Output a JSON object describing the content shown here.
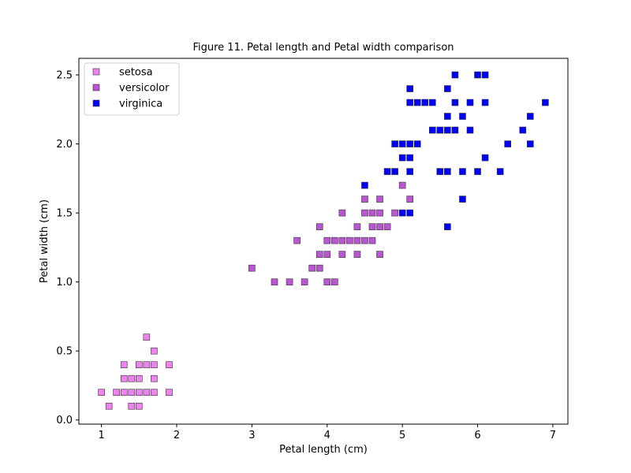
{
  "chart_data": {
    "type": "scatter",
    "title": "Figure 11. Petal length and Petal width comparison",
    "xlabel": "Petal length (cm)",
    "ylabel": "Petal width (cm)",
    "xlim": [
      0.7,
      7.2
    ],
    "ylim": [
      -0.03,
      2.62
    ],
    "xticks": [
      1,
      2,
      3,
      4,
      5,
      6,
      7
    ],
    "yticks": [
      0.0,
      0.5,
      1.0,
      1.5,
      2.0,
      2.5
    ],
    "xtick_labels": [
      "1",
      "2",
      "3",
      "4",
      "5",
      "6",
      "7"
    ],
    "ytick_labels": [
      "0.0",
      "0.5",
      "1.0",
      "1.5",
      "2.0",
      "2.5"
    ],
    "grid": false,
    "legend_position": "top-left",
    "marker": "square",
    "series": [
      {
        "name": "setosa",
        "color": "#ee82ee",
        "points": [
          [
            1.0,
            0.2
          ],
          [
            1.1,
            0.1
          ],
          [
            1.2,
            0.2
          ],
          [
            1.3,
            0.2
          ],
          [
            1.3,
            0.3
          ],
          [
            1.3,
            0.4
          ],
          [
            1.4,
            0.1
          ],
          [
            1.4,
            0.2
          ],
          [
            1.4,
            0.3
          ],
          [
            1.5,
            0.1
          ],
          [
            1.5,
            0.2
          ],
          [
            1.5,
            0.3
          ],
          [
            1.5,
            0.4
          ],
          [
            1.6,
            0.2
          ],
          [
            1.6,
            0.4
          ],
          [
            1.6,
            0.6
          ],
          [
            1.7,
            0.2
          ],
          [
            1.7,
            0.3
          ],
          [
            1.7,
            0.4
          ],
          [
            1.7,
            0.5
          ],
          [
            1.9,
            0.2
          ],
          [
            1.9,
            0.4
          ]
        ]
      },
      {
        "name": "versicolor",
        "color": "#ba55d3",
        "points": [
          [
            3.0,
            1.1
          ],
          [
            3.3,
            1.0
          ],
          [
            3.5,
            1.0
          ],
          [
            3.6,
            1.3
          ],
          [
            3.7,
            1.0
          ],
          [
            3.8,
            1.1
          ],
          [
            3.9,
            1.1
          ],
          [
            3.9,
            1.2
          ],
          [
            3.9,
            1.4
          ],
          [
            4.0,
            1.0
          ],
          [
            4.0,
            1.2
          ],
          [
            4.0,
            1.3
          ],
          [
            4.1,
            1.0
          ],
          [
            4.1,
            1.3
          ],
          [
            4.2,
            1.2
          ],
          [
            4.2,
            1.3
          ],
          [
            4.2,
            1.5
          ],
          [
            4.3,
            1.3
          ],
          [
            4.4,
            1.2
          ],
          [
            4.4,
            1.3
          ],
          [
            4.4,
            1.4
          ],
          [
            4.5,
            1.3
          ],
          [
            4.5,
            1.5
          ],
          [
            4.5,
            1.6
          ],
          [
            4.6,
            1.3
          ],
          [
            4.6,
            1.4
          ],
          [
            4.6,
            1.5
          ],
          [
            4.7,
            1.2
          ],
          [
            4.7,
            1.4
          ],
          [
            4.7,
            1.5
          ],
          [
            4.7,
            1.6
          ],
          [
            4.8,
            1.4
          ],
          [
            4.9,
            1.5
          ],
          [
            5.0,
            1.7
          ],
          [
            5.1,
            1.6
          ]
        ]
      },
      {
        "name": "virginica",
        "color": "#0000ff",
        "points": [
          [
            4.5,
            1.7
          ],
          [
            4.8,
            1.8
          ],
          [
            4.9,
            1.8
          ],
          [
            4.9,
            2.0
          ],
          [
            5.0,
            1.5
          ],
          [
            5.0,
            1.9
          ],
          [
            5.0,
            2.0
          ],
          [
            5.1,
            1.5
          ],
          [
            5.1,
            1.8
          ],
          [
            5.1,
            1.9
          ],
          [
            5.1,
            2.0
          ],
          [
            5.1,
            2.3
          ],
          [
            5.1,
            2.4
          ],
          [
            5.2,
            2.0
          ],
          [
            5.2,
            2.3
          ],
          [
            5.3,
            2.3
          ],
          [
            5.4,
            2.1
          ],
          [
            5.4,
            2.3
          ],
          [
            5.5,
            1.8
          ],
          [
            5.5,
            2.1
          ],
          [
            5.6,
            1.4
          ],
          [
            5.6,
            1.8
          ],
          [
            5.6,
            2.1
          ],
          [
            5.6,
            2.2
          ],
          [
            5.6,
            2.4
          ],
          [
            5.7,
            2.1
          ],
          [
            5.7,
            2.3
          ],
          [
            5.7,
            2.5
          ],
          [
            5.8,
            1.6
          ],
          [
            5.8,
            1.8
          ],
          [
            5.8,
            2.2
          ],
          [
            5.9,
            2.1
          ],
          [
            5.9,
            2.3
          ],
          [
            6.0,
            1.8
          ],
          [
            6.0,
            2.5
          ],
          [
            6.1,
            1.9
          ],
          [
            6.1,
            2.3
          ],
          [
            6.1,
            2.5
          ],
          [
            6.3,
            1.8
          ],
          [
            6.4,
            2.0
          ],
          [
            6.6,
            2.1
          ],
          [
            6.7,
            2.0
          ],
          [
            6.7,
            2.2
          ],
          [
            6.9,
            2.3
          ]
        ]
      }
    ]
  }
}
